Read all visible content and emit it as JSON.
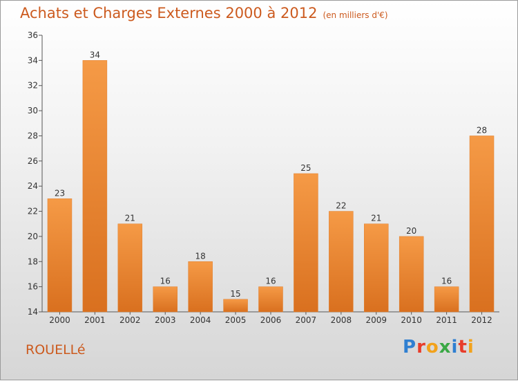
{
  "title": "Achats et Charges Externes 2000 à 2012",
  "subtitle": "(en milliers d'€)",
  "place": "ROUELLé",
  "logo": {
    "letters": [
      "P",
      "r",
      "o",
      "x",
      "i",
      "t",
      "i"
    ],
    "colors": [
      "#2f7fd1",
      "#e83c2a",
      "#f2a21b",
      "#3aa845",
      "#2f7fd1",
      "#e83c2a",
      "#f2a21b"
    ]
  },
  "colors": {
    "bar": "#f59a46",
    "bar_dark": "#d9701f",
    "title": "#cc5a1e"
  },
  "chart_data": {
    "type": "bar",
    "categories": [
      "2000",
      "2001",
      "2002",
      "2003",
      "2004",
      "2005",
      "2006",
      "2007",
      "2008",
      "2009",
      "2010",
      "2011",
      "2012"
    ],
    "values": [
      23,
      34,
      21,
      16,
      18,
      15,
      16,
      25,
      22,
      21,
      20,
      16,
      28
    ],
    "ylim": [
      14,
      36
    ],
    "yticks": [
      14,
      16,
      18,
      20,
      22,
      24,
      26,
      28,
      30,
      32,
      34,
      36
    ],
    "grid": false
  }
}
